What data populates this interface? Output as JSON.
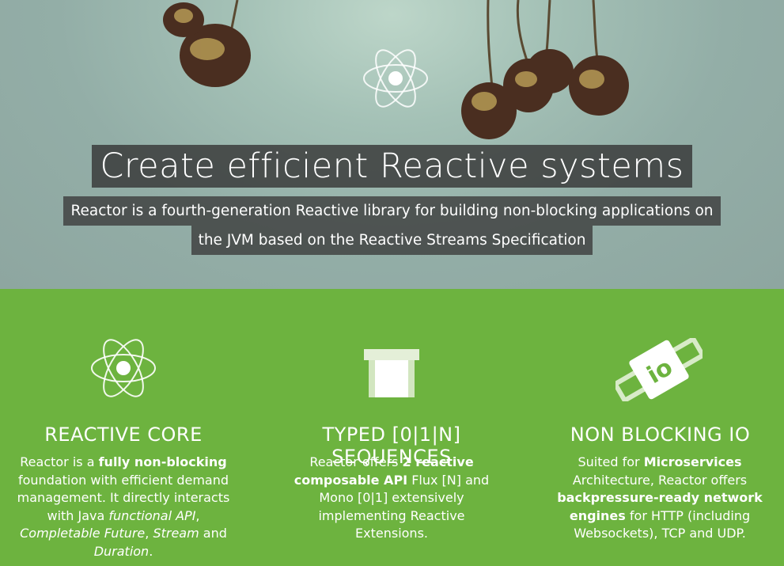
{
  "hero": {
    "logo_icon": "atom-icon",
    "title": "Create efficient Reactive systems",
    "subtitle_line1": "Reactor is a fourth-generation Reactive library for building non-blocking applications on",
    "subtitle_line2": "the JVM based on the Reactive Streams Specification"
  },
  "features": [
    {
      "icon": "atom-icon",
      "title": "REACTIVE CORE",
      "text": {
        "a": "Reactor is a ",
        "b": "fully non-blocking",
        "c": " foundation with efficient demand management. It directly interacts with Java ",
        "d": "functional API",
        "e": ", ",
        "f": "Completable Future",
        "g": ", ",
        "h": "Stream",
        "i": " and ",
        "j": "Duration",
        "k": "."
      }
    },
    {
      "icon": "sequence-block-icon",
      "title": "TYPED [0|1|N] SEQUENCES",
      "text": {
        "a": "Reactor offers ",
        "b": "2 reactive composable API",
        "c": " Flux [N] and Mono [0|1] extensively implementing Reactive Extensions."
      }
    },
    {
      "icon": "io-plug-icon",
      "title": "NON BLOCKING IO",
      "text": {
        "a": "Suited for ",
        "b": "Microservices",
        "c": " Architecture, Reactor offers ",
        "d": "backpressure-ready network engines",
        "e": " for HTTP (including Websockets), TCP and UDP."
      }
    }
  ],
  "colors": {
    "green": "#6db33f",
    "hero_bg": "#9ab5ad",
    "caption_bg": "#3c3c3c"
  }
}
